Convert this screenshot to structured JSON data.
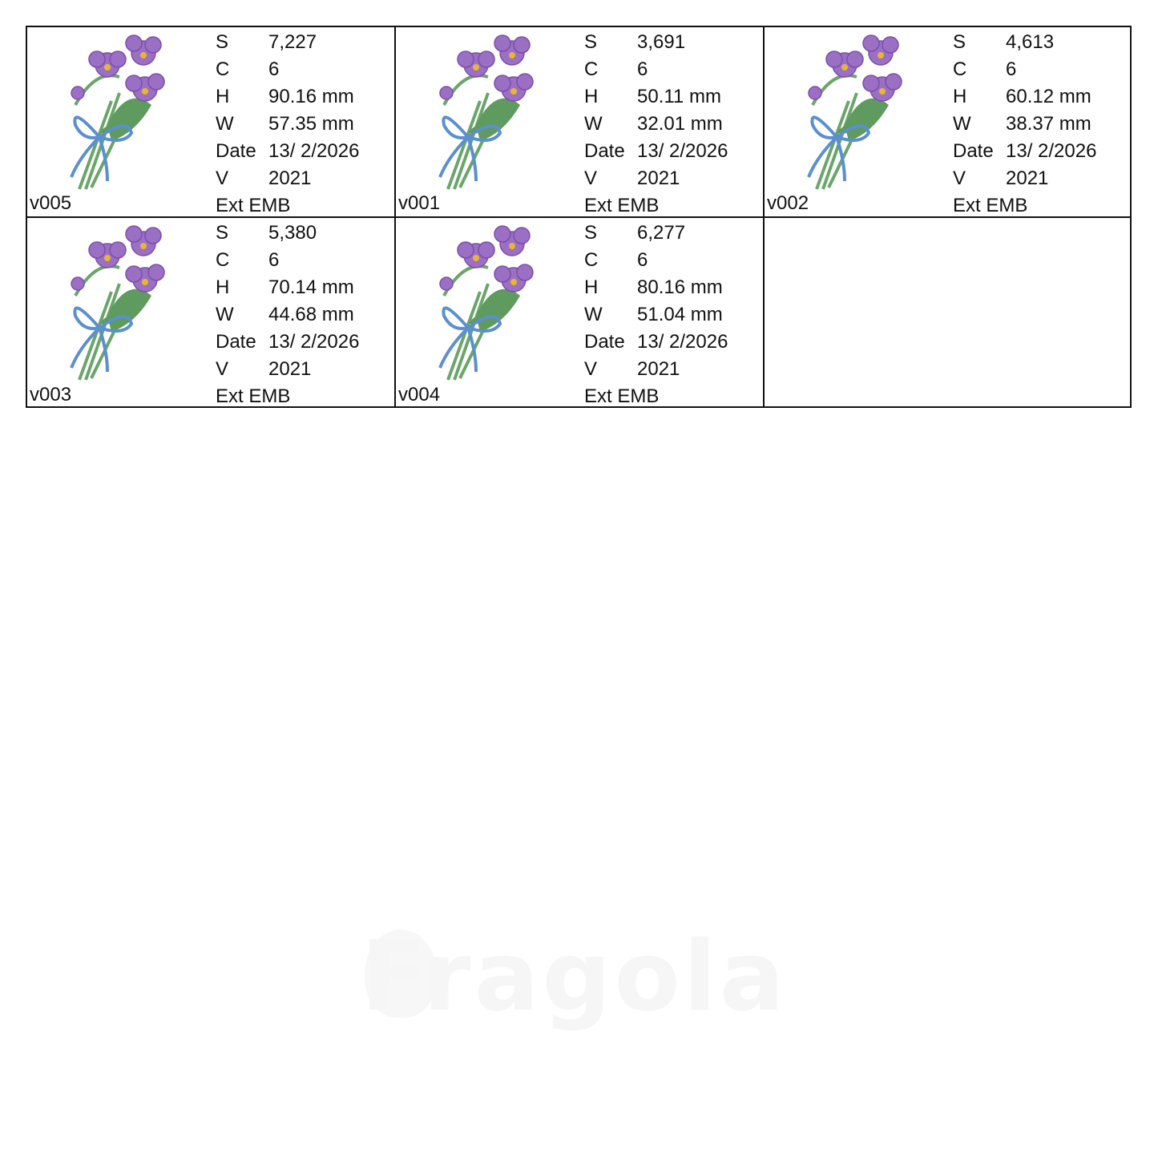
{
  "watermark": "Fragola",
  "labels": {
    "s": "S",
    "c": "C",
    "h": "H",
    "w": "W",
    "date": "Date",
    "v": "V",
    "ext": "Ext"
  },
  "designs": [
    {
      "name": "v005",
      "s": "7,227",
      "c": "6",
      "h": "90.16 mm",
      "w": "57.35 mm",
      "date": "13/ 2/2026",
      "v": "2021",
      "ext": "EMB"
    },
    {
      "name": "v001",
      "s": "3,691",
      "c": "6",
      "h": "50.11 mm",
      "w": "32.01 mm",
      "date": "13/ 2/2026",
      "v": "2021",
      "ext": "EMB"
    },
    {
      "name": "v002",
      "s": "4,613",
      "c": "6",
      "h": "60.12 mm",
      "w": "38.37 mm",
      "date": "13/ 2/2026",
      "v": "2021",
      "ext": "EMB"
    },
    {
      "name": "v003",
      "s": "5,380",
      "c": "6",
      "h": "70.14 mm",
      "w": "44.68 mm",
      "date": "13/ 2/2026",
      "v": "2021",
      "ext": "EMB"
    },
    {
      "name": "v004",
      "s": "6,277",
      "c": "6",
      "h": "80.16 mm",
      "w": "51.04 mm",
      "date": "13/ 2/2026",
      "v": "2021",
      "ext": "EMB"
    }
  ],
  "colors": {
    "petal": "#9a6fc4",
    "petal_dark": "#7b4fa8",
    "leaf": "#5f9a5f",
    "stem": "#6aa56a",
    "ribbon": "#5b8fcf",
    "center": "#e8b630"
  }
}
